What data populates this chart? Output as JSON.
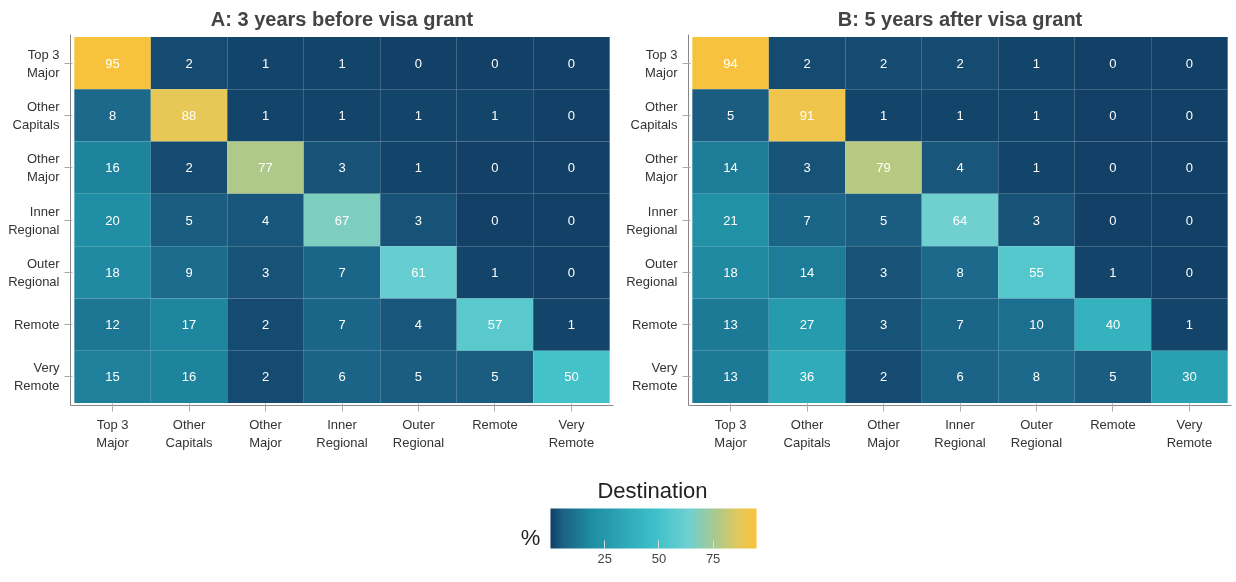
{
  "chart_data": [
    {
      "type": "heatmap",
      "title": "A: 3 years before visa grant",
      "xlabel": "Destination",
      "clabel": "%",
      "categories": [
        "Top 3\nMajor",
        "Other\nCapitals",
        "Other\nMajor",
        "Inner\nRegional",
        "Outer\nRegional",
        "Remote",
        "Very\nRemote"
      ],
      "y_categories": [
        "Top 3\nMajor",
        "Other\nCapitals",
        "Other\nMajor",
        "Inner\nRegional",
        "Outer\nRegional",
        "Remote",
        "Very\nRemote"
      ],
      "cells": [
        [
          95,
          2,
          1,
          1,
          0,
          0,
          0
        ],
        [
          8,
          88,
          1,
          1,
          1,
          1,
          0
        ],
        [
          16,
          2,
          77,
          3,
          1,
          0,
          0
        ],
        [
          20,
          5,
          4,
          67,
          3,
          0,
          0
        ],
        [
          18,
          9,
          3,
          7,
          61,
          1,
          0
        ],
        [
          12,
          17,
          2,
          7,
          4,
          57,
          1
        ],
        [
          15,
          16,
          2,
          6,
          5,
          5,
          50
        ]
      ],
      "clim": [
        0,
        95
      ],
      "cticks": [
        25,
        50,
        75
      ],
      "data_labels": true
    },
    {
      "type": "heatmap",
      "title": "B: 5 years after visa grant",
      "categories": [
        "Top 3\nMajor",
        "Other\nCapitals",
        "Other\nMajor",
        "Inner\nRegional",
        "Outer\nRegional",
        "Remote",
        "Very\nRemote"
      ],
      "y_categories": [
        "Top 3\nMajor",
        "Other\nCapitals",
        "Other\nMajor",
        "Inner\nRegional",
        "Outer\nRegional",
        "Remote",
        "Very\nRemote"
      ],
      "cells": [
        [
          94,
          2,
          2,
          2,
          1,
          0,
          0
        ],
        [
          5,
          91,
          1,
          1,
          1,
          0,
          0
        ],
        [
          14,
          3,
          79,
          4,
          1,
          0,
          0
        ],
        [
          21,
          7,
          5,
          64,
          3,
          0,
          0
        ],
        [
          18,
          14,
          3,
          8,
          55,
          1,
          0
        ],
        [
          13,
          27,
          3,
          7,
          10,
          40,
          1
        ],
        [
          13,
          36,
          2,
          6,
          8,
          5,
          30
        ]
      ],
      "data_labels": true
    }
  ]
}
